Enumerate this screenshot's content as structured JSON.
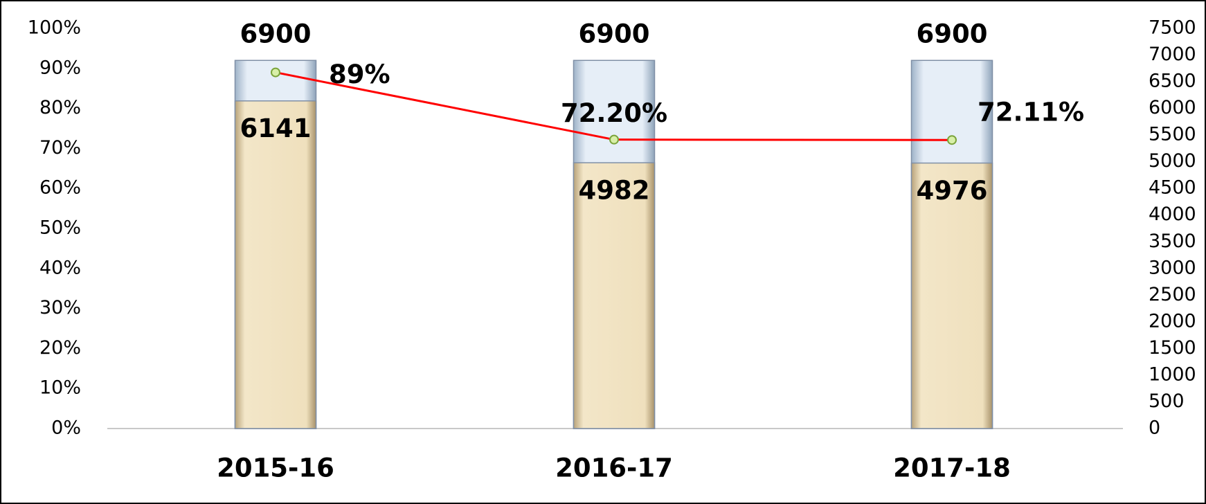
{
  "chart_data": {
    "type": "combo",
    "categories": [
      "2015-16",
      "2016-17",
      "2017-18"
    ],
    "series": [
      {
        "type": "bar",
        "axis": "y2",
        "color": "#dfe9f3",
        "values": [
          6900,
          6900,
          6900
        ]
      },
      {
        "type": "bar",
        "axis": "y2",
        "color": "#ecdcb8",
        "values": [
          6141,
          4982,
          4976
        ]
      },
      {
        "type": "line",
        "axis": "y",
        "color": "#ff0000",
        "values": [
          89,
          72.2,
          72.11
        ],
        "value_labels": [
          "89%",
          "72.20%",
          "72.11%"
        ]
      }
    ],
    "ylim": [
      0,
      100
    ],
    "yticks": [
      {
        "value": 0,
        "label": "0%"
      },
      {
        "value": 10,
        "label": "10%"
      },
      {
        "value": 20,
        "label": "20%"
      },
      {
        "value": 30,
        "label": "30%"
      },
      {
        "value": 40,
        "label": "40%"
      },
      {
        "value": 50,
        "label": "50%"
      },
      {
        "value": 60,
        "label": "60%"
      },
      {
        "value": 70,
        "label": "70%"
      },
      {
        "value": 80,
        "label": "80%"
      },
      {
        "value": 90,
        "label": "90%"
      },
      {
        "value": 100,
        "label": "100%"
      }
    ],
    "y2lim": [
      0,
      7500
    ],
    "y2ticks": [
      0,
      500,
      1000,
      1500,
      2000,
      2500,
      3000,
      3500,
      4000,
      4500,
      5000,
      5500,
      6000,
      6500,
      7000,
      7500
    ],
    "grid": false
  }
}
